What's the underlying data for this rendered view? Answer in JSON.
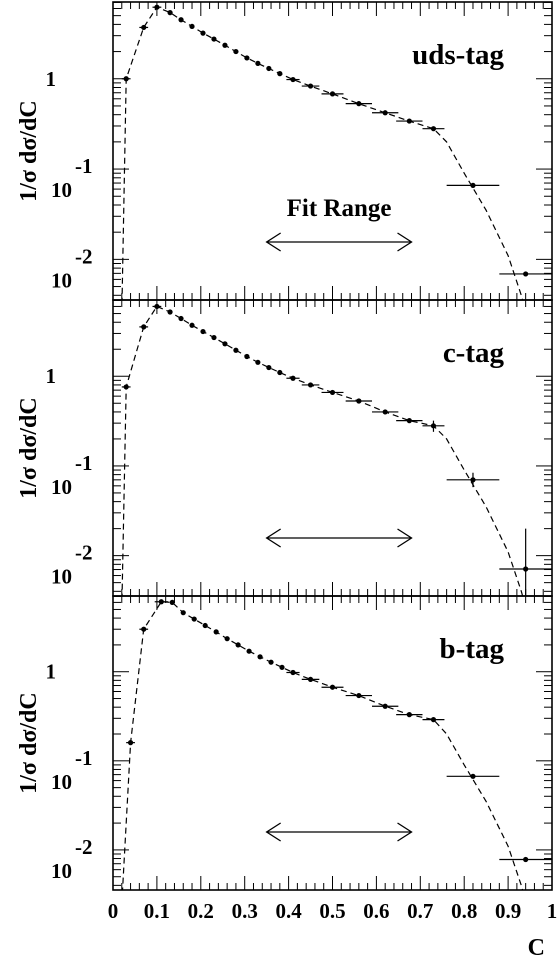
{
  "chart_data": [
    {
      "type": "scatter",
      "tag_label": "uds-tag",
      "ylabel": "1/σ dσ/dC",
      "xlabel": "C",
      "annotation": "Fit Range",
      "fit_range": [
        0.35,
        0.68
      ],
      "xlim": [
        0,
        1
      ],
      "ylim_log10": [
        -2.45,
        0.85
      ],
      "yscale": "log",
      "ytick_labels": [
        {
          "mantissa": "1",
          "exp": ""
        },
        {
          "mantissa": "10",
          "exp": "-1"
        },
        {
          "mantissa": "10",
          "exp": "-2"
        }
      ],
      "points": [
        {
          "x": 0.03,
          "y": 1.0,
          "xerr": 0.01
        },
        {
          "x": 0.07,
          "y": 3.7,
          "xerr": 0.01
        },
        {
          "x": 0.1,
          "y": 6.2,
          "xerr": 0.01
        },
        {
          "x": 0.13,
          "y": 5.4
        },
        {
          "x": 0.155,
          "y": 4.5
        },
        {
          "x": 0.18,
          "y": 3.8
        },
        {
          "x": 0.205,
          "y": 3.2
        },
        {
          "x": 0.23,
          "y": 2.75
        },
        {
          "x": 0.255,
          "y": 2.35
        },
        {
          "x": 0.28,
          "y": 2.0
        },
        {
          "x": 0.305,
          "y": 1.7
        },
        {
          "x": 0.33,
          "y": 1.48
        },
        {
          "x": 0.355,
          "y": 1.3
        },
        {
          "x": 0.38,
          "y": 1.14
        },
        {
          "x": 0.41,
          "y": 0.98,
          "xerr": 0.015
        },
        {
          "x": 0.45,
          "y": 0.83,
          "xerr": 0.02
        },
        {
          "x": 0.5,
          "y": 0.68,
          "xerr": 0.025
        },
        {
          "x": 0.56,
          "y": 0.53,
          "xerr": 0.03
        },
        {
          "x": 0.62,
          "y": 0.42,
          "xerr": 0.03
        },
        {
          "x": 0.675,
          "y": 0.34,
          "xerr": 0.03
        },
        {
          "x": 0.73,
          "y": 0.28,
          "xerr": 0.025
        },
        {
          "x": 0.82,
          "y": 0.066,
          "xerr": 0.06
        },
        {
          "x": 0.94,
          "y": 0.0069,
          "xerr": 0.06
        }
      ]
    },
    {
      "type": "scatter",
      "tag_label": "c-tag",
      "ylabel": "1/σ dσ/dC",
      "xlabel": "C",
      "annotation": "",
      "fit_range": [
        0.35,
        0.68
      ],
      "xlim": [
        0,
        1
      ],
      "ylim_log10": [
        -2.45,
        0.85
      ],
      "yscale": "log",
      "ytick_labels": [
        {
          "mantissa": "1",
          "exp": ""
        },
        {
          "mantissa": "10",
          "exp": "-1"
        },
        {
          "mantissa": "10",
          "exp": "-2"
        }
      ],
      "points": [
        {
          "x": 0.03,
          "y": 0.76,
          "xerr": 0.01
        },
        {
          "x": 0.07,
          "y": 3.55,
          "xerr": 0.01
        },
        {
          "x": 0.1,
          "y": 6.0,
          "xerr": 0.01
        },
        {
          "x": 0.13,
          "y": 5.2
        },
        {
          "x": 0.155,
          "y": 4.4
        },
        {
          "x": 0.18,
          "y": 3.7
        },
        {
          "x": 0.205,
          "y": 3.15
        },
        {
          "x": 0.23,
          "y": 2.7
        },
        {
          "x": 0.255,
          "y": 2.3
        },
        {
          "x": 0.28,
          "y": 1.95
        },
        {
          "x": 0.305,
          "y": 1.66
        },
        {
          "x": 0.33,
          "y": 1.43
        },
        {
          "x": 0.355,
          "y": 1.25
        },
        {
          "x": 0.38,
          "y": 1.1
        },
        {
          "x": 0.41,
          "y": 0.95,
          "xerr": 0.015
        },
        {
          "x": 0.45,
          "y": 0.8,
          "xerr": 0.02
        },
        {
          "x": 0.5,
          "y": 0.66,
          "xerr": 0.025
        },
        {
          "x": 0.56,
          "y": 0.53,
          "xerr": 0.03
        },
        {
          "x": 0.62,
          "y": 0.4,
          "xerr": 0.03
        },
        {
          "x": 0.675,
          "y": 0.32,
          "xerr": 0.03
        },
        {
          "x": 0.73,
          "y": 0.28,
          "xerr": 0.025,
          "yerr": [
            0.24,
            0.32
          ]
        },
        {
          "x": 0.82,
          "y": 0.07,
          "xerr": 0.06,
          "yerr": [
            0.058,
            0.084
          ]
        },
        {
          "x": 0.94,
          "y": 0.0071,
          "xerr": 0.06,
          "yerr": [
            0.0035,
            0.02
          ]
        }
      ]
    },
    {
      "type": "scatter",
      "tag_label": "b-tag",
      "ylabel": "1/σ dσ/dC",
      "xlabel": "C",
      "annotation": "",
      "fit_range": [
        0.35,
        0.68
      ],
      "xlim": [
        0,
        1
      ],
      "ylim_log10": [
        -2.45,
        0.85
      ],
      "yscale": "log",
      "ytick_labels": [
        {
          "mantissa": "1",
          "exp": ""
        },
        {
          "mantissa": "10",
          "exp": "-1"
        },
        {
          "mantissa": "10",
          "exp": "-2"
        }
      ],
      "points": [
        {
          "x": 0.04,
          "y": 0.16,
          "xerr": 0.01
        },
        {
          "x": 0.07,
          "y": 3.0,
          "xerr": 0.01
        },
        {
          "x": 0.11,
          "y": 6.1,
          "xerr": 0.015
        },
        {
          "x": 0.135,
          "y": 6.0
        },
        {
          "x": 0.16,
          "y": 4.6
        },
        {
          "x": 0.185,
          "y": 3.9
        },
        {
          "x": 0.21,
          "y": 3.3
        },
        {
          "x": 0.235,
          "y": 2.8
        },
        {
          "x": 0.26,
          "y": 2.35
        },
        {
          "x": 0.285,
          "y": 2.0
        },
        {
          "x": 0.31,
          "y": 1.7
        },
        {
          "x": 0.335,
          "y": 1.47
        },
        {
          "x": 0.36,
          "y": 1.28
        },
        {
          "x": 0.385,
          "y": 1.12
        },
        {
          "x": 0.41,
          "y": 0.98,
          "xerr": 0.015
        },
        {
          "x": 0.45,
          "y": 0.82,
          "xerr": 0.02
        },
        {
          "x": 0.5,
          "y": 0.67,
          "xerr": 0.025
        },
        {
          "x": 0.56,
          "y": 0.54,
          "xerr": 0.03
        },
        {
          "x": 0.62,
          "y": 0.41,
          "xerr": 0.03
        },
        {
          "x": 0.675,
          "y": 0.33,
          "xerr": 0.03
        },
        {
          "x": 0.73,
          "y": 0.29,
          "xerr": 0.025
        },
        {
          "x": 0.82,
          "y": 0.067,
          "xerr": 0.06
        },
        {
          "x": 0.94,
          "y": 0.0078,
          "xerr": 0.06
        }
      ]
    }
  ],
  "x_axis": {
    "label": "C",
    "ticks": [
      "0",
      "0.1",
      "0.2",
      "0.3",
      "0.4",
      "0.5",
      "0.6",
      "0.7",
      "0.8",
      "0.9",
      "1"
    ]
  }
}
